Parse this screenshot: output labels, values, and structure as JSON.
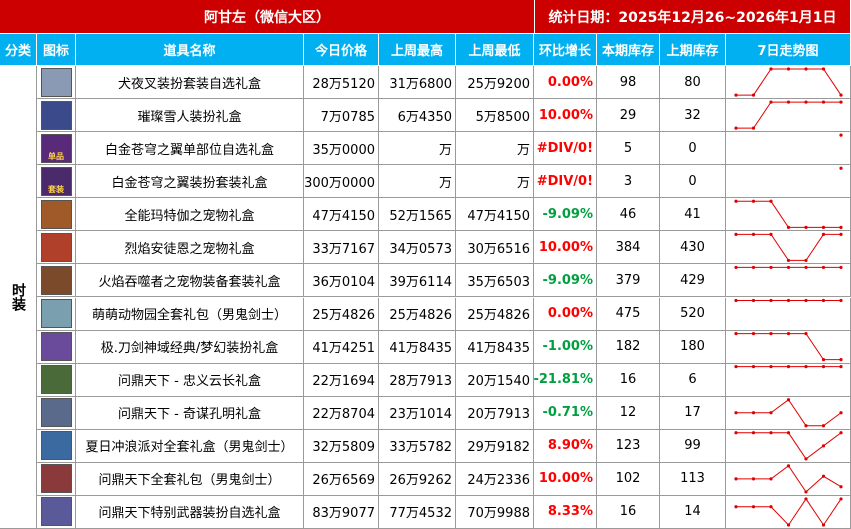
{
  "header": {
    "title": "阿甘左（微信大区）",
    "date": "统计日期：2025年12月26~2026年1月1日"
  },
  "columns": [
    "分类",
    "图标",
    "道具名称",
    "今日价格",
    "上周最高",
    "上周最低",
    "环比增长",
    "本期库存",
    "上期库存",
    "7日走势图"
  ],
  "category": "时装",
  "rows": [
    {
      "name": "犬夜叉装扮套装自选礼盒",
      "price": "28万5120",
      "high": "31万6800",
      "low": "25万9200",
      "growth": "0.00%",
      "stock": 98,
      "prev_stock": 80,
      "trend": [
        0,
        0,
        1,
        1,
        1,
        1,
        0
      ]
    },
    {
      "name": "璀璨雪人装扮礼盒",
      "price": "7万0785",
      "high": "6万4350",
      "low": "5万8500",
      "growth": "10.00%",
      "stock": 29,
      "prev_stock": 32,
      "trend": [
        0,
        0,
        1,
        1,
        1,
        1,
        1
      ]
    },
    {
      "name": "白金苍穹之翼单部位自选礼盒",
      "icon_text": "单品",
      "price": "35万0000",
      "high": "万",
      "low": "万",
      "growth": "#DIV/0!",
      "stock": 5,
      "prev_stock": 0,
      "trend": [
        null,
        null,
        null,
        null,
        null,
        null,
        1
      ]
    },
    {
      "name": "白金苍穹之翼装扮套装礼盒",
      "icon_text": "套装",
      "price": "300万0000",
      "high": "万",
      "low": "万",
      "growth": "#DIV/0!",
      "stock": 3,
      "prev_stock": 0,
      "trend": [
        null,
        null,
        null,
        null,
        null,
        null,
        1
      ]
    },
    {
      "name": "全能玛特伽之宠物礼盒",
      "price": "47万4150",
      "high": "52万1565",
      "low": "47万4150",
      "growth": "-9.09%",
      "stock": 46,
      "prev_stock": 41,
      "trend": [
        1,
        1,
        1,
        0,
        0,
        0,
        0
      ]
    },
    {
      "name": "烈焰安徒恩之宠物礼盒",
      "price": "33万7167",
      "high": "34万0573",
      "low": "30万6516",
      "growth": "10.00%",
      "stock": 384,
      "prev_stock": 430,
      "trend": [
        1,
        1,
        1,
        0,
        0,
        1,
        1
      ]
    },
    {
      "name": "火焰吞噬者之宠物装备套装礼盒",
      "price": "36万0104",
      "high": "39万6114",
      "low": "35万6503",
      "growth": "-9.09%",
      "stock": 379,
      "prev_stock": 429,
      "trend": [
        1,
        1,
        1,
        1,
        1,
        1,
        1
      ]
    },
    {
      "name": "萌萌动物园全套礼包（男鬼剑士）",
      "price": "25万4826",
      "high": "25万4826",
      "low": "25万4826",
      "growth": "0.00%",
      "stock": 475,
      "prev_stock": 520,
      "trend": [
        1,
        1,
        1,
        1,
        1,
        1,
        1
      ]
    },
    {
      "name": "极.刀剑神域经典/梦幻装扮礼盒",
      "price": "41万4251",
      "high": "41万8435",
      "low": "41万8435",
      "growth": "-1.00%",
      "stock": 182,
      "prev_stock": 180,
      "trend": [
        1,
        1,
        1,
        1,
        1,
        0,
        0
      ]
    },
    {
      "name": "问鼎天下 - 忠义云长礼盒",
      "price": "22万1694",
      "high": "28万7913",
      "low": "20万1540",
      "growth": "-21.81%",
      "stock": 16,
      "prev_stock": 6,
      "trend": [
        1,
        1,
        1,
        1,
        1,
        1,
        1
      ]
    },
    {
      "name": "问鼎天下 - 奇谋孔明礼盒",
      "price": "22万8704",
      "high": "23万1014",
      "low": "20万7913",
      "growth": "-0.71%",
      "stock": 12,
      "prev_stock": 17,
      "trend": [
        0.5,
        0.5,
        0.5,
        1,
        0,
        0,
        0.5
      ]
    },
    {
      "name": "夏日冲浪派对全套礼盒（男鬼剑士）",
      "price": "32万5809",
      "high": "33万5782",
      "low": "29万9182",
      "growth": "8.90%",
      "stock": 123,
      "prev_stock": 99,
      "trend": [
        1,
        1,
        1,
        1,
        0,
        0.5,
        1
      ]
    },
    {
      "name": "问鼎天下全套礼包（男鬼剑士）",
      "price": "26万6569",
      "high": "26万9262",
      "low": "24万2336",
      "growth": "10.00%",
      "stock": 102,
      "prev_stock": 113,
      "trend": [
        0.5,
        0.5,
        0.5,
        1,
        0,
        0.6,
        0.2
      ]
    },
    {
      "name": "问鼎天下特别武器装扮自选礼盒",
      "price": "83万9077",
      "high": "77万4532",
      "low": "70万9988",
      "growth": "8.33%",
      "stock": 16,
      "prev_stock": 14,
      "trend": [
        0.7,
        0.7,
        0.7,
        0,
        1,
        0,
        1
      ]
    }
  ]
}
